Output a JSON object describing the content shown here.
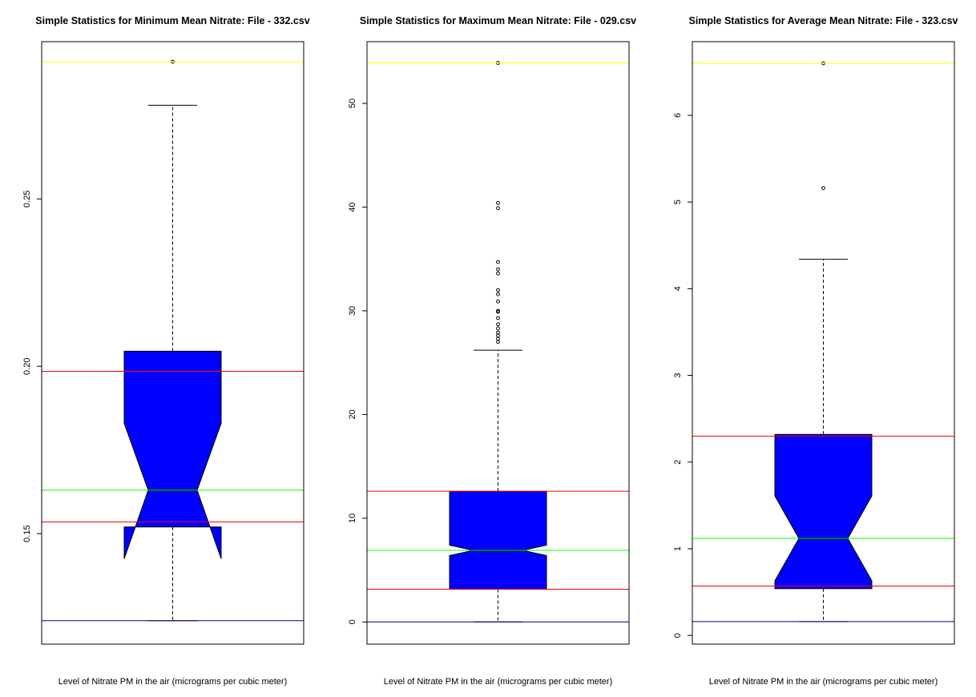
{
  "chart_data": [
    {
      "type": "boxplot",
      "title": "Simple Statistics for Minimum Mean Nitrate: File - 332.csv",
      "xlabel": "Level of Nitrate PM in the air (micrograms per cubic meter)",
      "ylabel": "",
      "ylim": [
        0.117,
        0.297
      ],
      "yticks": [
        0.15,
        0.2,
        0.25
      ],
      "ytick_labels": [
        "0.15",
        "0.20",
        "0.25"
      ],
      "notched": true,
      "box": {
        "lower_whisker": 0.124,
        "q1": 0.152,
        "median": 0.163,
        "q3": 0.2045,
        "upper_whisker": 0.278,
        "notch_low": 0.1425,
        "notch_high": 0.183
      },
      "outliers": [
        0.291
      ],
      "reference_lines": [
        {
          "y": 0.291,
          "color": "#ffff00"
        },
        {
          "y": 0.1985,
          "color": "#ff0000"
        },
        {
          "y": 0.163,
          "color": "#00ff00"
        },
        {
          "y": 0.1535,
          "color": "#ff0000"
        },
        {
          "y": 0.124,
          "color": "#000080"
        }
      ],
      "box_color": "#0000ff",
      "grid": false
    },
    {
      "type": "boxplot",
      "title": "Simple Statistics for Maximum Mean Nitrate: File - 029.csv",
      "xlabel": "Level of Nitrate PM in the air (micrograms per cubic meter)",
      "ylabel": "",
      "ylim": [
        -2.14,
        55.95
      ],
      "yticks": [
        0,
        10,
        20,
        30,
        40,
        50
      ],
      "ytick_labels": [
        "0",
        "10",
        "20",
        "30",
        "40",
        "50"
      ],
      "notched": true,
      "box": {
        "lower_whisker": 0.0,
        "q1": 3.15,
        "median": 6.9,
        "q3": 12.6,
        "upper_whisker": 26.2,
        "notch_low": 6.4,
        "notch_high": 7.4
      },
      "outliers": [
        27.0,
        27.3,
        27.6,
        27.9,
        28.3,
        28.7,
        29.3,
        29.9,
        30.0,
        30.9,
        31.6,
        32.0,
        33.6,
        34.0,
        34.7,
        39.9,
        40.4,
        53.9
      ],
      "reference_lines": [
        {
          "y": 53.9,
          "color": "#ffff00"
        },
        {
          "y": 12.6,
          "color": "#ff0000"
        },
        {
          "y": 6.9,
          "color": "#00ff00"
        },
        {
          "y": 3.15,
          "color": "#ff0000"
        },
        {
          "y": 0.0,
          "color": "#000080"
        }
      ],
      "box_color": "#0000ff",
      "grid": false
    },
    {
      "type": "boxplot",
      "title": "Simple Statistics for Average Mean Nitrate: File - 323.csv",
      "xlabel": "Level of Nitrate PM in the air (micrograms per cubic meter)",
      "ylabel": "",
      "ylim": [
        -0.1,
        6.85
      ],
      "yticks": [
        0,
        1,
        2,
        3,
        4,
        5,
        6
      ],
      "ytick_labels": [
        "0",
        "1",
        "2",
        "3",
        "4",
        "5",
        "6"
      ],
      "notched": true,
      "box": {
        "lower_whisker": 0.16,
        "q1": 0.54,
        "median": 1.12,
        "q3": 2.32,
        "upper_whisker": 4.34,
        "notch_low": 0.63,
        "notch_high": 1.61
      },
      "outliers": [
        5.16,
        6.6
      ],
      "reference_lines": [
        {
          "y": 6.6,
          "color": "#ffff00"
        },
        {
          "y": 2.3,
          "color": "#ff0000"
        },
        {
          "y": 1.12,
          "color": "#00ff00"
        },
        {
          "y": 0.57,
          "color": "#ff0000"
        },
        {
          "y": 0.16,
          "color": "#000080"
        }
      ],
      "box_color": "#0000ff",
      "grid": false
    }
  ]
}
